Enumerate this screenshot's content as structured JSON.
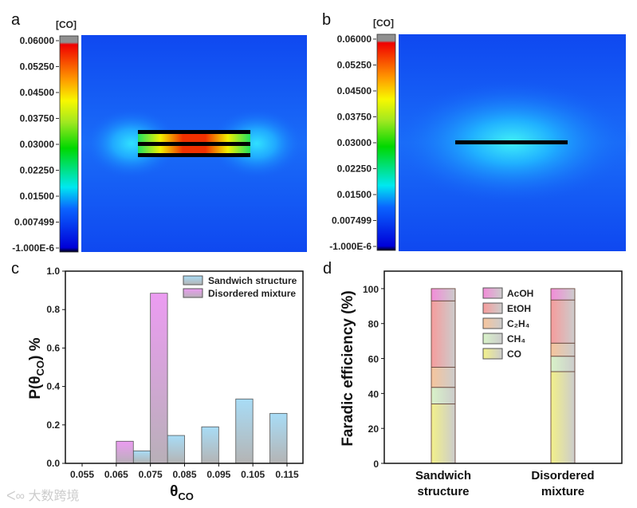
{
  "chart_data": [
    {
      "panel": "a",
      "type": "heatmap",
      "title": "",
      "colorbar_label": "[CO]",
      "colorbar_ticks": [
        "0.06000",
        "0.05250",
        "0.04500",
        "0.03750",
        "0.03000",
        "0.02250",
        "0.01500",
        "0.007499",
        "-1.000E-6"
      ],
      "clim": [
        -1e-06,
        0.06
      ],
      "structure": "three stacked layers (sandwich), high CO concentration between layers"
    },
    {
      "panel": "b",
      "type": "heatmap",
      "colorbar_label": "[CO]",
      "colorbar_ticks": [
        "0.06000",
        "0.05250",
        "0.04500",
        "0.03750",
        "0.03000",
        "0.02250",
        "0.01500",
        "0.007499",
        "-1.000E-6"
      ],
      "clim": [
        -1e-06,
        0.06
      ],
      "structure": "single layer"
    },
    {
      "panel": "c",
      "type": "bar",
      "xlabel": {
        "main": "θ",
        "sub": "CO"
      },
      "ylabel": {
        "main": "P(θ",
        "sub": "CO",
        "tail": ") %"
      },
      "xlim": [
        0.05,
        0.12
      ],
      "ylim": [
        0,
        1.0
      ],
      "xticks": [
        "0.055",
        "0.065",
        "0.075",
        "0.085",
        "0.095",
        "0.105",
        "0.115"
      ],
      "yticks": [
        "0.0",
        "0.2",
        "0.4",
        "0.6",
        "0.8",
        "1.0"
      ],
      "legend_position": "top-right",
      "series": [
        {
          "name": "Sandwich structure",
          "color_top": "#a8dcf6",
          "color_bottom": "#b4b4b4",
          "bins": [
            [
              0.07,
              0.075,
              0.065
            ],
            [
              0.08,
              0.085,
              0.145
            ],
            [
              0.09,
              0.095,
              0.19
            ],
            [
              0.1,
              0.105,
              0.335
            ],
            [
              0.11,
              0.115,
              0.26
            ]
          ]
        },
        {
          "name": "Disordered mixture",
          "color_top": "#ec9cf2",
          "color_bottom": "#b8b0b8",
          "bins": [
            [
              0.065,
              0.07,
              0.115
            ],
            [
              0.075,
              0.08,
              0.885
            ]
          ]
        }
      ]
    },
    {
      "panel": "d",
      "type": "bar",
      "stacked": true,
      "ylabel": "Faradic efficiency (%)",
      "ylim": [
        0,
        110
      ],
      "yticks": [
        "0",
        "20",
        "40",
        "60",
        "80",
        "100"
      ],
      "categories": [
        [
          "Sandwich",
          "structure"
        ],
        [
          "Disordered",
          "mixture"
        ]
      ],
      "legend_position": "top-center",
      "series": [
        {
          "name": "CO",
          "color": "#f2f08a",
          "values": [
            34,
            52.5
          ]
        },
        {
          "name": "CH₄",
          "color": "#d8f2c8",
          "values": [
            9.5,
            8.8
          ]
        },
        {
          "name": "C₂H₄",
          "color": "#f6c49c",
          "values": [
            11.5,
            7.5
          ]
        },
        {
          "name": "EtOH",
          "color": "#f69c9c",
          "values": [
            38,
            24.7
          ]
        },
        {
          "name": "AcOH",
          "color": "#f28cd8",
          "values": [
            7,
            6.5
          ]
        }
      ]
    }
  ],
  "panel_labels": [
    "a",
    "b",
    "c",
    "d"
  ],
  "watermark": "大数跨境"
}
